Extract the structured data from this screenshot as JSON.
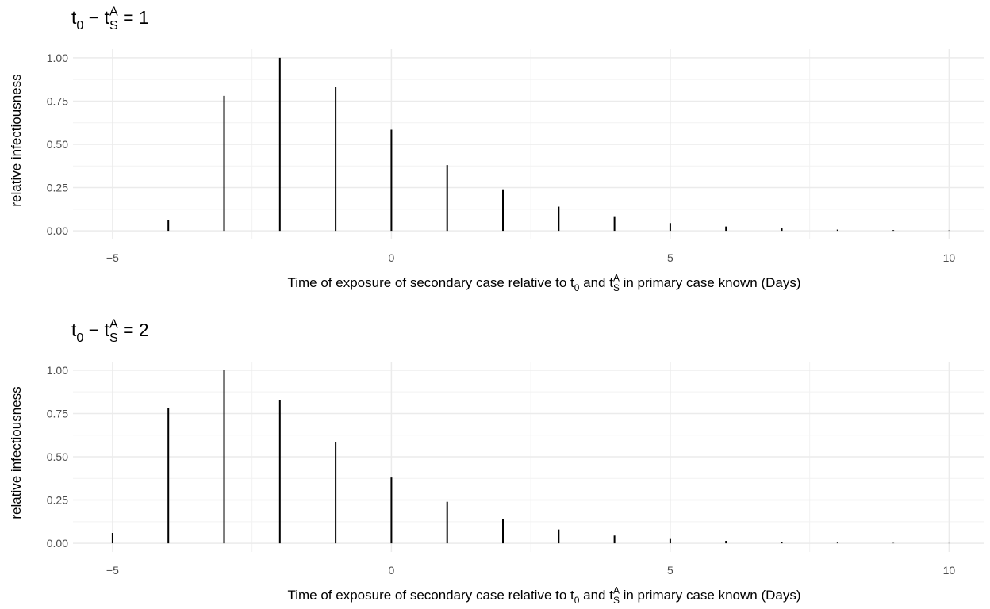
{
  "chart_data": [
    {
      "type": "bar",
      "title": [
        {
          "text": "t"
        },
        {
          "text": "0",
          "script": "sub"
        },
        {
          "text": " − t"
        },
        {
          "text": "S",
          "script": "sub"
        },
        {
          "text": "A",
          "script": "sup"
        },
        {
          "text": " = 1"
        }
      ],
      "x_label": [
        {
          "text": "Time of exposure of secondary case relative to t"
        },
        {
          "text": "0",
          "script": "sub"
        },
        {
          "text": " and t"
        },
        {
          "text": "S",
          "script": "sub"
        },
        {
          "text": "A",
          "script": "sup"
        },
        {
          "text": " in primary case known (Days)"
        }
      ],
      "y_label": "relative infectiousness",
      "x": [
        -4,
        -3,
        -2,
        -1,
        0,
        1,
        2,
        3,
        4,
        5,
        6,
        7,
        8,
        9,
        10
      ],
      "values": [
        0.06,
        0.78,
        1.0,
        0.83,
        0.585,
        0.38,
        0.24,
        0.14,
        0.08,
        0.045,
        0.025,
        0.014,
        0.007,
        0.004,
        0.002
      ],
      "color": "#000000",
      "xlim": [
        -5.71,
        10.62
      ],
      "ylim": [
        -0.05,
        1.05
      ],
      "xticks": [
        {
          "value": -5,
          "label": "−5"
        },
        0,
        5,
        10
      ],
      "x_minor_ticks": [
        -2.5,
        2.5,
        7.5
      ],
      "yticks": [
        {
          "value": 0,
          "label": "0.00"
        },
        0.25,
        {
          "value": 0.5,
          "label": "0.50"
        },
        0.75,
        {
          "value": 1,
          "label": "1.00"
        }
      ],
      "y_minor_ticks": [
        0.125,
        0.375,
        0.625,
        0.875
      ],
      "grid": true
    },
    {
      "type": "bar",
      "title": [
        {
          "text": "t"
        },
        {
          "text": "0",
          "script": "sub"
        },
        {
          "text": " − t"
        },
        {
          "text": "S",
          "script": "sub"
        },
        {
          "text": "A",
          "script": "sup"
        },
        {
          "text": " = 2"
        }
      ],
      "x_label": [
        {
          "text": "Time of exposure of secondary case relative to t"
        },
        {
          "text": "0",
          "script": "sub"
        },
        {
          "text": " and t"
        },
        {
          "text": "S",
          "script": "sub"
        },
        {
          "text": "A",
          "script": "sup"
        },
        {
          "text": " in primary case known (Days)"
        }
      ],
      "y_label": "relative infectiousness",
      "x": [
        -5,
        -4,
        -3,
        -2,
        -1,
        0,
        1,
        2,
        3,
        4,
        5,
        6,
        7,
        8,
        9,
        10
      ],
      "values": [
        0.06,
        0.78,
        1.0,
        0.83,
        0.585,
        0.38,
        0.24,
        0.14,
        0.08,
        0.045,
        0.025,
        0.014,
        0.007,
        0.004,
        0.002,
        0.001
      ],
      "color": "#000000",
      "xlim": [
        -5.71,
        10.62
      ],
      "ylim": [
        -0.05,
        1.05
      ],
      "xticks": [
        {
          "value": -5,
          "label": "−5"
        },
        0,
        5,
        10
      ],
      "x_minor_ticks": [
        -2.5,
        2.5,
        7.5
      ],
      "yticks": [
        {
          "value": 0,
          "label": "0.00"
        },
        0.25,
        {
          "value": 0.5,
          "label": "0.50"
        },
        0.75,
        {
          "value": 1,
          "label": "1.00"
        }
      ],
      "y_minor_ticks": [
        0.125,
        0.375,
        0.625,
        0.875
      ],
      "grid": true
    }
  ]
}
